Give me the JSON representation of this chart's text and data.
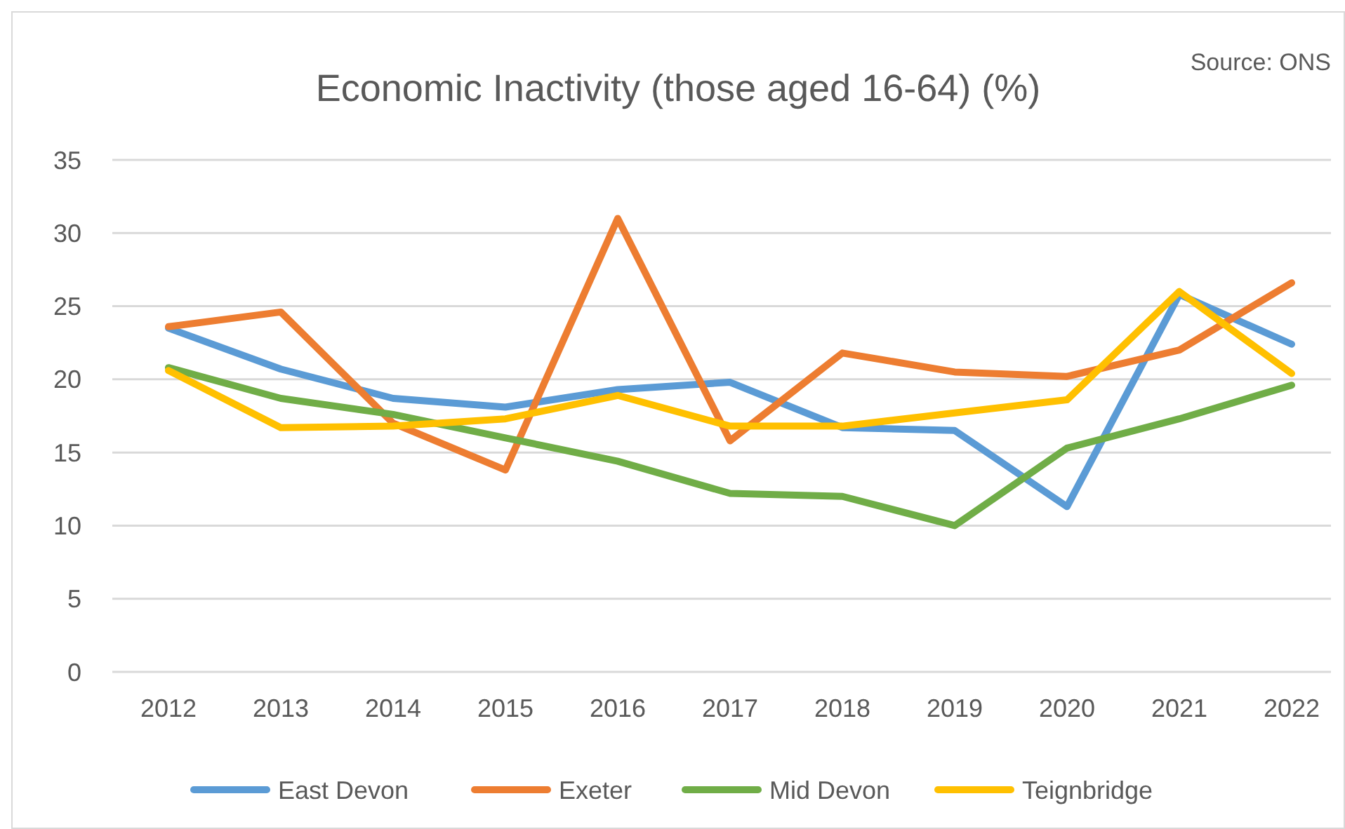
{
  "chart_data": {
    "type": "line",
    "title": "Economic Inactivity (those aged 16-64) (%)",
    "annotations": [
      "Source: ONS"
    ],
    "categories": [
      "2012",
      "2013",
      "2014",
      "2015",
      "2016",
      "2017",
      "2018",
      "2019",
      "2020",
      "2021",
      "2022"
    ],
    "series": [
      {
        "name": "East Devon",
        "color": "#5b9bd5",
        "values": [
          23.5,
          20.7,
          18.7,
          18.1,
          19.3,
          19.8,
          16.7,
          16.5,
          11.3,
          25.8,
          22.4
        ]
      },
      {
        "name": "Exeter",
        "color": "#ed7d31",
        "values": [
          23.6,
          24.6,
          17.0,
          13.8,
          31.0,
          15.8,
          21.8,
          20.5,
          20.2,
          22.0,
          26.6
        ]
      },
      {
        "name": "Mid Devon",
        "color": "#70ad47",
        "values": [
          20.8,
          18.7,
          17.6,
          16.0,
          14.4,
          12.2,
          12.0,
          10.0,
          15.3,
          17.3,
          19.6
        ]
      },
      {
        "name": "Teignbridge",
        "color": "#ffc000",
        "values": [
          20.6,
          16.7,
          16.8,
          17.3,
          18.9,
          16.8,
          16.8,
          17.7,
          18.6,
          26.0,
          20.4
        ]
      }
    ],
    "ylim": [
      0,
      35
    ],
    "yticks": [
      0,
      5,
      10,
      15,
      20,
      25,
      30,
      35
    ],
    "grid": "y",
    "legend": "bottom",
    "marker": "none",
    "line_style": "solid"
  }
}
